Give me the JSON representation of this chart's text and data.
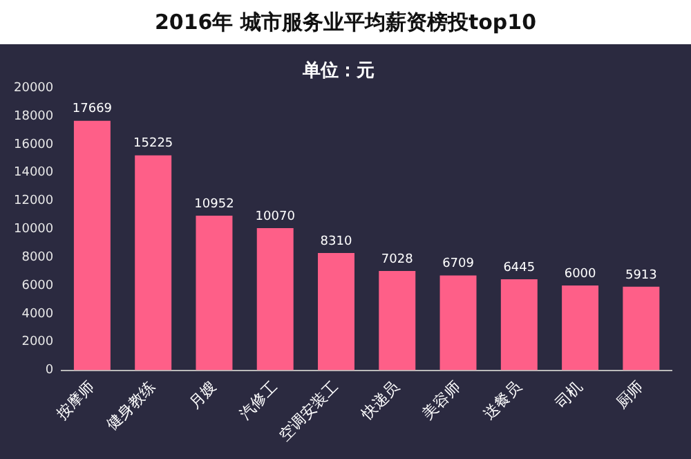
{
  "chart_data": {
    "type": "bar",
    "title": "2016年 城市服务业平均薪资榜投top10",
    "subtitle": "单位：元",
    "categories": [
      "按摩师",
      "健身教练",
      "月嫂",
      "汽修工",
      "空调安装工",
      "快递员",
      "美容师",
      "送餐员",
      "司机",
      "厨师"
    ],
    "values": [
      17669,
      15225,
      10952,
      10070,
      8310,
      7028,
      6709,
      6445,
      6000,
      5913
    ],
    "color": "#fe5f88",
    "ylim": [
      0,
      20000
    ],
    "yticks": [
      0,
      2000,
      4000,
      6000,
      8000,
      10000,
      12000,
      14000,
      16000,
      18000,
      20000
    ],
    "grid": false,
    "legend": false,
    "data_labels": true
  }
}
